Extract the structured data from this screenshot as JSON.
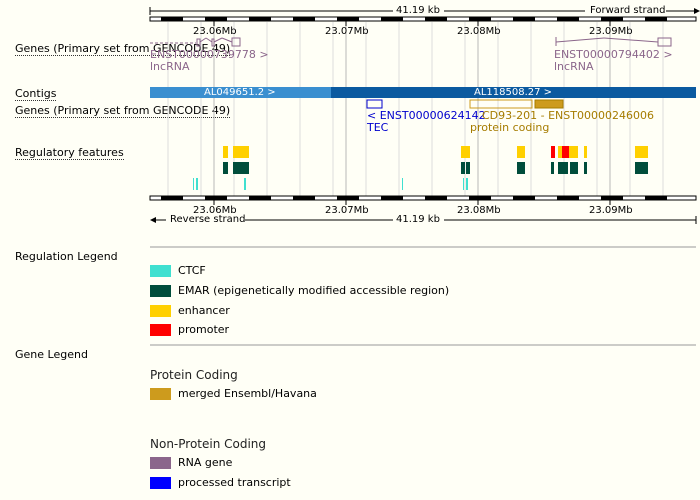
{
  "scale": {
    "length_label": "41.19 kb",
    "forward_strand": "Forward strand",
    "reverse_strand": "Reverse strand",
    "ticks": [
      "23.06Mb",
      "23.07Mb",
      "23.08Mb",
      "23.09Mb"
    ]
  },
  "tracks": {
    "genes_primary_top": "Genes (Primary set from GENCODE 49)",
    "contigs": "Contigs",
    "genes_primary_bottom": "Genes (Primary set from GENCODE 49)",
    "regulatory": "Regulatory features"
  },
  "genes": {
    "top_left_id": "ENST00000739778 >",
    "top_left_type": "lncRNA",
    "top_right_id": "ENST00000794402 >",
    "top_right_type": "lncRNA",
    "tec_id": "< ENST00000624142",
    "tec_type": "TEC",
    "cd93_id": "CD93-201 - ENST00000246006",
    "cd93_type": "protein coding"
  },
  "contigs": {
    "left": "AL049651.2 >",
    "right": "AL118508.27 >"
  },
  "regulation_legend": {
    "title": "Regulation Legend",
    "items": [
      {
        "label": "CTCF",
        "color": "#40e0d0"
      },
      {
        "label": "EMAR (epigenetically modified accessible region)",
        "color": "#004d3b"
      },
      {
        "label": "enhancer",
        "color": "#ffd000"
      },
      {
        "label": "promoter",
        "color": "#ff0000"
      }
    ]
  },
  "gene_legend": {
    "title": "Gene Legend",
    "protein_coding_heading": "Protein Coding",
    "protein_coding_items": [
      {
        "label": "merged Ensembl/Havana",
        "color": "#cd9b1d"
      }
    ],
    "non_coding_heading": "Non-Protein Coding",
    "non_coding_items": [
      {
        "label": "RNA gene",
        "color": "#8b668b"
      },
      {
        "label": "processed transcript",
        "color": "#0000ff"
      }
    ]
  },
  "colors": {
    "contig_light": "#3a8fd0",
    "contig_dark": "#0b5aa0",
    "lncrna": "#8b668b",
    "tec": "#0000cd",
    "protein_coding": "#a67c00"
  }
}
